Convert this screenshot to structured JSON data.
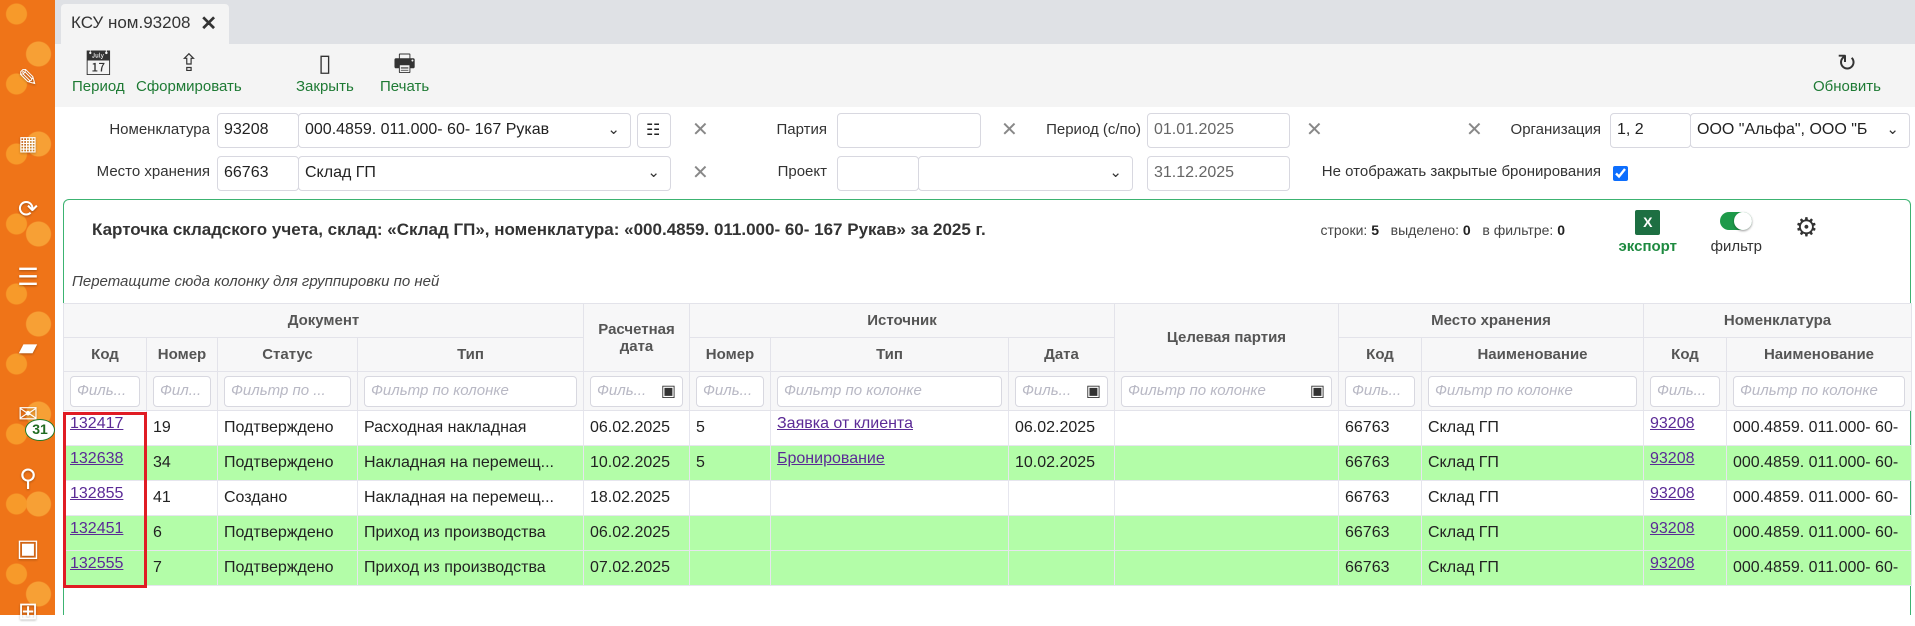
{
  "sidebar": {
    "icons": [
      "pencil-icon",
      "qr-code-icon",
      "sync-icon",
      "download-list-icon",
      "folder-icon",
      "mail-icon",
      "search-icon",
      "calendar-icon",
      "grid-icon"
    ],
    "mail_badge": "31"
  },
  "tab": {
    "title": "КСУ ном.93208"
  },
  "toolbar": {
    "period": "Период",
    "form": "Сформировать",
    "close": "Закрыть",
    "print": "Печать",
    "refresh": "Обновить"
  },
  "filters": {
    "nomenclature": {
      "label": "Номенклатура",
      "code": "93208",
      "name": "000.4859. 011.000- 60- 167 Рукав"
    },
    "storage": {
      "label": "Место хранения",
      "code": "66763",
      "name": "Склад ГП"
    },
    "batch": {
      "label": "Партия",
      "value": ""
    },
    "project": {
      "label": "Проект",
      "code": "",
      "name": ""
    },
    "period": {
      "label": "Период (с/по)",
      "from": "01.01.2025",
      "to": "31.12.2025"
    },
    "organization": {
      "label": "Организация",
      "code": "1, 2",
      "name": "ООО \"Альфа\", ООО \"Б"
    },
    "hide_closed": {
      "label": "Не отображать закрытые бронирования",
      "checked": true
    }
  },
  "panel": {
    "title": "Карточка складского учета, склад: «Склад ГП», номенклатура: «000.4859. 011.000- 60- 167 Рукав» за 2025 г.",
    "rows_label": "строки:",
    "rows": "5",
    "selected_label": "выделено:",
    "selected": "0",
    "filtered_label": "в фильтре:",
    "filtered": "0",
    "export": "экспорт",
    "filter": "фильтр",
    "filter_on": true,
    "group_hint": "Перетащите сюда колонку для группировки по ней"
  },
  "table": {
    "groups": {
      "document": "Документ",
      "calc_date": "Расчетная дата",
      "source": "Источник",
      "target_batch": "Целевая партия",
      "storage": "Место хранения",
      "nomenclature": "Номенклатура"
    },
    "columns": [
      "Код",
      "Номер",
      "Статус",
      "Тип",
      "Номер",
      "Тип",
      "Дата",
      "Код",
      "Наименование",
      "Код",
      "Наименование"
    ],
    "filter_placeholders": [
      "Филь...",
      "Фил...",
      "Фильтр по ...",
      "Фильтр по колонке",
      "Филь...",
      "Филь...",
      "Фильтр по колонке",
      "Филь...",
      "Фильтр по колонке",
      "Филь...",
      "Фильтр по колонке",
      "Филь...",
      "Фильтр по колонке"
    ],
    "rows": [
      {
        "code": "132417",
        "num": "19",
        "status": "Подтверждено",
        "type": "Расходная накладная",
        "calc": "06.02.2025",
        "src_num": "5",
        "src_type": "Заявка от клиента",
        "src_date": "06.02.2025",
        "target": "",
        "st_code": "66763",
        "st_name": "Склад ГП",
        "nom_code": "93208",
        "nom_name": "000.4859. 011.000- 60-",
        "highlight": false
      },
      {
        "code": "132638",
        "num": "34",
        "status": "Подтверждено",
        "type": "Накладная на перемещ...",
        "calc": "10.02.2025",
        "src_num": "5",
        "src_type": "Бронирование",
        "src_date": "10.02.2025",
        "target": "",
        "st_code": "66763",
        "st_name": "Склад ГП",
        "nom_code": "93208",
        "nom_name": "000.4859. 011.000- 60-",
        "highlight": true
      },
      {
        "code": "132855",
        "num": "41",
        "status": "Создано",
        "type": "Накладная на перемещ...",
        "calc": "18.02.2025",
        "src_num": "",
        "src_type": "",
        "src_date": "",
        "target": "",
        "st_code": "66763",
        "st_name": "Склад ГП",
        "nom_code": "93208",
        "nom_name": "000.4859. 011.000- 60-",
        "highlight": false
      },
      {
        "code": "132451",
        "num": "6",
        "status": "Подтверждено",
        "type": "Приход из производства",
        "calc": "06.02.2025",
        "src_num": "",
        "src_type": "",
        "src_date": "",
        "target": "",
        "st_code": "66763",
        "st_name": "Склад ГП",
        "nom_code": "93208",
        "nom_name": "000.4859. 011.000- 60-",
        "highlight": true
      },
      {
        "code": "132555",
        "num": "7",
        "status": "Подтверждено",
        "type": "Приход из производства",
        "calc": "07.02.2025",
        "src_num": "",
        "src_type": "",
        "src_date": "",
        "target": "",
        "st_code": "66763",
        "st_name": "Склад ГП",
        "nom_code": "93208",
        "nom_name": "000.4859. 011.000- 60-",
        "highlight": true
      }
    ]
  },
  "colors": {
    "accent": "#1e7a34",
    "sidebar": "#ef7418",
    "row_highlight": "#b3fda8",
    "link": "#5b2a96",
    "selection_box": "#e01c24"
  }
}
